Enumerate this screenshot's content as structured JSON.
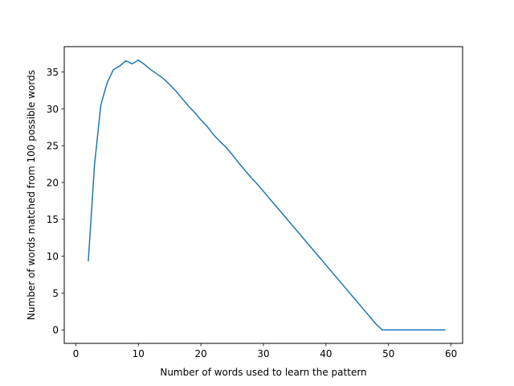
{
  "chart_data": {
    "type": "line",
    "title": "",
    "xlabel": "Number of words used to learn the pattern",
    "ylabel": "Number of words matched from 100 possible words",
    "xlim": [
      -1.85,
      61.85
    ],
    "ylim": [
      -1.83,
      38.43
    ],
    "xticks": [
      0,
      10,
      20,
      30,
      40,
      50,
      60
    ],
    "yticks": [
      0,
      5,
      10,
      15,
      20,
      25,
      30,
      35
    ],
    "grid": false,
    "legend": "none",
    "line_color": "#1f77b4",
    "series": [
      {
        "x": [
          2,
          3,
          4,
          5,
          6,
          7,
          8,
          9,
          10,
          11,
          12,
          13,
          14,
          15,
          16,
          17,
          18,
          19,
          20,
          21,
          22,
          23,
          24,
          25,
          26,
          27,
          28,
          29,
          30,
          31,
          32,
          33,
          34,
          35,
          36,
          37,
          38,
          39,
          40,
          41,
          42,
          43,
          44,
          45,
          46,
          47,
          48,
          49,
          50,
          51,
          52,
          53,
          54,
          55,
          56,
          57,
          58,
          59
        ],
        "values": [
          9.4,
          22.5,
          30.5,
          33.5,
          35.3,
          35.8,
          36.5,
          36.1,
          36.6,
          36.0,
          35.3,
          34.7,
          34.1,
          33.3,
          32.4,
          31.4,
          30.4,
          29.5,
          28.5,
          27.6,
          26.5,
          25.6,
          24.8,
          23.8,
          22.7,
          21.7,
          20.7,
          19.8,
          18.8,
          17.8,
          16.8,
          15.8,
          14.8,
          13.8,
          12.8,
          11.8,
          10.8,
          9.8,
          8.8,
          7.8,
          6.8,
          5.8,
          4.8,
          3.8,
          2.8,
          1.8,
          0.8,
          0,
          0,
          0,
          0,
          0,
          0,
          0,
          0,
          0,
          0,
          0
        ]
      }
    ]
  }
}
